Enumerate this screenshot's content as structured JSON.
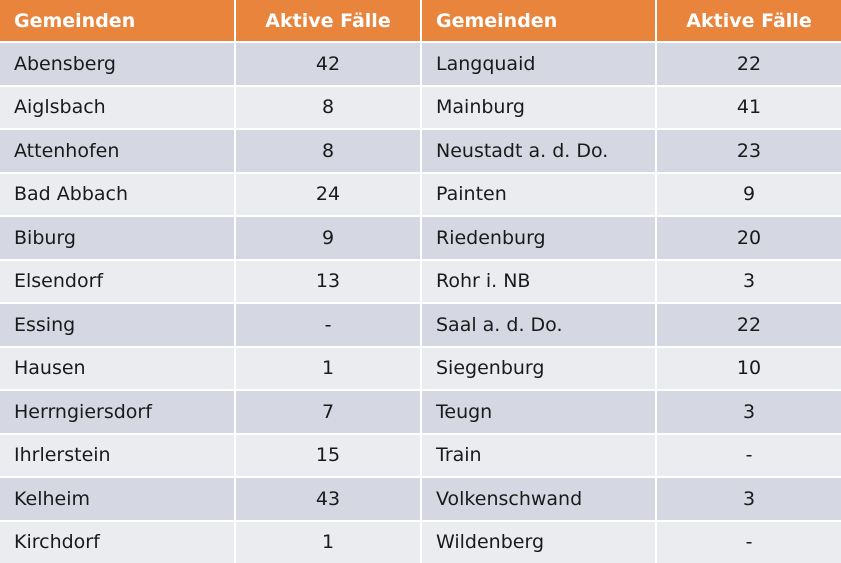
{
  "header": {
    "col1": "Gemeinden",
    "col2": "Aktive Fälle",
    "col3": "Gemeinden",
    "col4": "Aktive Fälle"
  },
  "rows": [
    {
      "name1": "Abensberg",
      "val1": "42",
      "name2": "Langquaid",
      "val2": "22"
    },
    {
      "name1": "Aiglsbach",
      "val1": "8",
      "name2": "Mainburg",
      "val2": "41"
    },
    {
      "name1": "Attenhofen",
      "val1": "8",
      "name2": "Neustadt a. d. Do.",
      "val2": "23"
    },
    {
      "name1": "Bad Abbach",
      "val1": "24",
      "name2": "Painten",
      "val2": "9"
    },
    {
      "name1": "Biburg",
      "val1": "9",
      "name2": "Riedenburg",
      "val2": "20"
    },
    {
      "name1": "Elsendorf",
      "val1": "13",
      "name2": "Rohr i. NB",
      "val2": "3"
    },
    {
      "name1": "Essing",
      "val1": "-",
      "name2": "Saal a. d. Do.",
      "val2": "22"
    },
    {
      "name1": "Hausen",
      "val1": "1",
      "name2": "Siegenburg",
      "val2": "10"
    },
    {
      "name1": "Herrngiersdorf",
      "val1": "7",
      "name2": "Teugn",
      "val2": "3"
    },
    {
      "name1": "Ihrlerstein",
      "val1": "15",
      "name2": "Train",
      "val2": "-"
    },
    {
      "name1": "Kelheim",
      "val1": "43",
      "name2": "Volkenschwand",
      "val2": "3"
    },
    {
      "name1": "Kirchdorf",
      "val1": "1",
      "name2": "Wildenberg",
      "val2": "-"
    }
  ],
  "colors": {
    "header_bg": "#e8843c",
    "row_odd_bg": "#d5d8e2",
    "row_even_bg": "#ebecf0",
    "header_text": "#ffffff",
    "body_text": "#1a1a1a"
  }
}
